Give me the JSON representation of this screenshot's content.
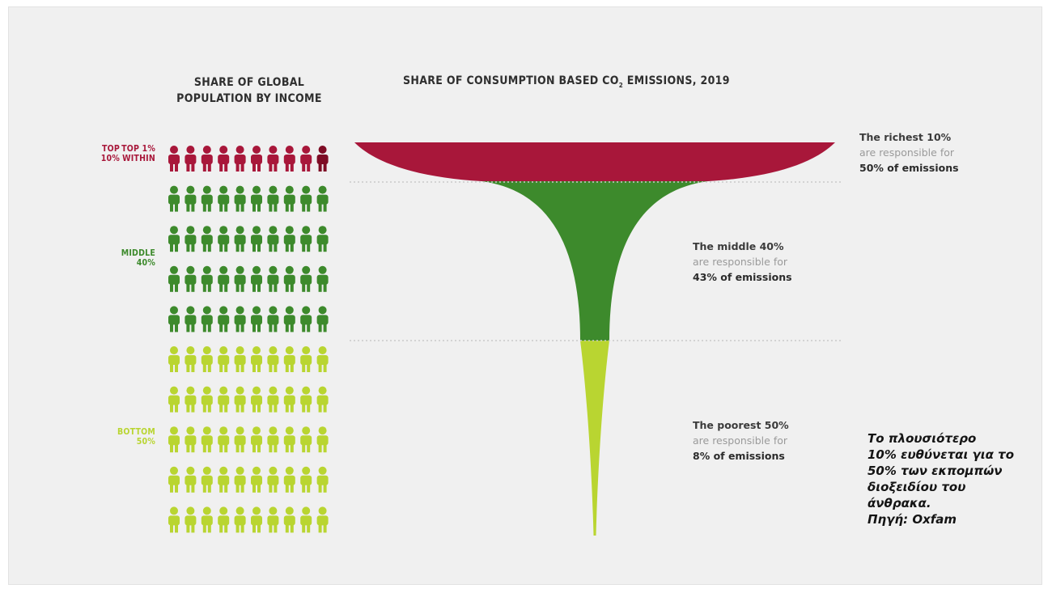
{
  "headings": {
    "population": [
      "SHARE OF GLOBAL",
      "POPULATION BY INCOME"
    ],
    "emissions_prefix": "SHARE OF CONSUMPTION BASED CO",
    "emissions_sub": "2",
    "emissions_suffix": " EMISSIONS, 2019"
  },
  "group_labels": {
    "top": [
      "TOP",
      "10%"
    ],
    "top1": [
      "TOP 1%",
      "WITHIN"
    ],
    "middle": [
      "MIDDLE",
      "40%"
    ],
    "bottom": [
      "BOTTOM",
      "50%"
    ]
  },
  "annotations": [
    {
      "line1": "The richest 10%",
      "line2": "are responsible for",
      "line3": "50% of emissions"
    },
    {
      "line1": "The middle 40%",
      "line2": "are responsible for",
      "line3": "43% of emissions"
    },
    {
      "line1": "The poorest 50%",
      "line2": "are responsible for",
      "line3": "8% of emissions"
    }
  ],
  "note": [
    "Το πλουσιότερο",
    "10% ευθύνεται για το",
    "50% των εκπομπών",
    "διοξειδίου του",
    "άνθρακα.",
    "Πηγή: Oxfam"
  ],
  "colors": {
    "richest": "#a8173a",
    "top1": "#7e0c25",
    "middle": "#3d8a2c",
    "bottom": "#b9d531",
    "dotted": "#c9c9c9"
  },
  "chart_data": {
    "type": "funnel",
    "population_icons_per_row": 10,
    "series": [
      {
        "name": "The richest 10%",
        "population_share": 10,
        "emissions_share": 50
      },
      {
        "name": "The middle 40%",
        "population_share": 40,
        "emissions_share": 43
      },
      {
        "name": "The poorest 50%",
        "population_share": 50,
        "emissions_share": 8
      }
    ],
    "top1_within_top10_share_of_population": 1
  }
}
